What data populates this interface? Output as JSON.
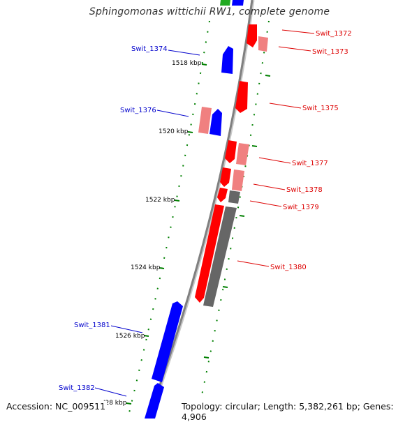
{
  "title": "Sphingomonas wittichii RW1, complete genome",
  "footer": {
    "accession": "Accession: NC_009511",
    "summary": "Topology: circular; Length: 5,382,261 bp; Genes: 4,906"
  },
  "colors": {
    "forward_gene": "#ff0000",
    "forward_gene_light": "#f08080",
    "reverse_gene": "#0000ff",
    "pseudo_gene": "#666666",
    "ruler": "#008000",
    "backbone": "#808080",
    "label_forward": "#dd0000",
    "label_reverse": "#0000cc"
  },
  "ticks": [
    {
      "label": "1518 kbp"
    },
    {
      "label": "1520 kbp"
    },
    {
      "label": "1522 kbp"
    },
    {
      "label": "1524 kbp"
    },
    {
      "label": "1526 kbp"
    },
    {
      "label": "'28 kbp"
    }
  ],
  "gene_labels": [
    {
      "text": "Swit_1372",
      "strand": "forward"
    },
    {
      "text": "Swit_1373",
      "strand": "forward"
    },
    {
      "text": "Swit_1374",
      "strand": "reverse"
    },
    {
      "text": "Swit_1375",
      "strand": "forward"
    },
    {
      "text": "Swit_1376",
      "strand": "reverse"
    },
    {
      "text": "Swit_1377",
      "strand": "forward"
    },
    {
      "text": "Swit_1378",
      "strand": "forward"
    },
    {
      "text": "Swit_1379",
      "strand": "forward"
    },
    {
      "text": "Swit_1380",
      "strand": "forward"
    },
    {
      "text": "Swit_1381",
      "strand": "reverse"
    },
    {
      "text": "Swit_1382",
      "strand": "reverse"
    }
  ]
}
